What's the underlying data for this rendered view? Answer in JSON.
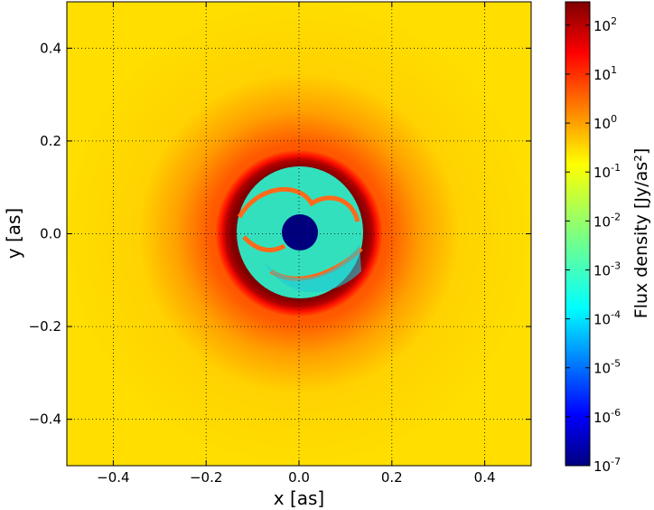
{
  "chart_data": {
    "type": "heatmap",
    "xlabel": "x [as]",
    "ylabel": "y [as]",
    "xlim": [
      -0.5,
      0.5
    ],
    "ylim": [
      -0.5,
      0.5
    ],
    "x_ticks": [
      -0.4,
      -0.2,
      0.0,
      0.2,
      0.4
    ],
    "y_ticks": [
      -0.4,
      -0.2,
      0.0,
      0.2,
      0.4
    ],
    "x_tick_labels": [
      "−0.4",
      "−0.2",
      "0.0",
      "0.2",
      "0.4"
    ],
    "y_tick_labels": [
      "−0.4",
      "−0.2",
      "0.0",
      "0.2",
      "0.4"
    ],
    "grid": true,
    "colormap": "jet",
    "colorbar": {
      "label": "Flux density [Jy/as²]",
      "scale": "log",
      "range": [
        1e-07,
        300
      ],
      "tick_exponents": [
        -7,
        -6,
        -5,
        -4,
        -3,
        -2,
        -1,
        0,
        1,
        2
      ],
      "tick_labels": [
        {
          "base": "10",
          "exp": "-7"
        },
        {
          "base": "10",
          "exp": "-6"
        },
        {
          "base": "10",
          "exp": "-5"
        },
        {
          "base": "10",
          "exp": "-4"
        },
        {
          "base": "10",
          "exp": "-3"
        },
        {
          "base": "10",
          "exp": "-2"
        },
        {
          "base": "10",
          "exp": "-1"
        },
        {
          "base": "10",
          "exp": "0"
        },
        {
          "base": "10",
          "exp": "1"
        },
        {
          "base": "10",
          "exp": "2"
        }
      ]
    },
    "features": {
      "background_log_flux": -0.6,
      "ring_radius": 0.15,
      "ring_log_flux_peak": 2.4,
      "cavity_radius": 0.13,
      "cavity_log_flux": -3.5,
      "central_disk_radius": 0.035,
      "central_disk_log_flux": -7.0
    },
    "colors": {
      "jet_stops": [
        "#00007f",
        "#0000ff",
        "#007fff",
        "#00ffff",
        "#7fff7f",
        "#ffff00",
        "#ff7f00",
        "#ff0000",
        "#7f0000"
      ]
    }
  }
}
